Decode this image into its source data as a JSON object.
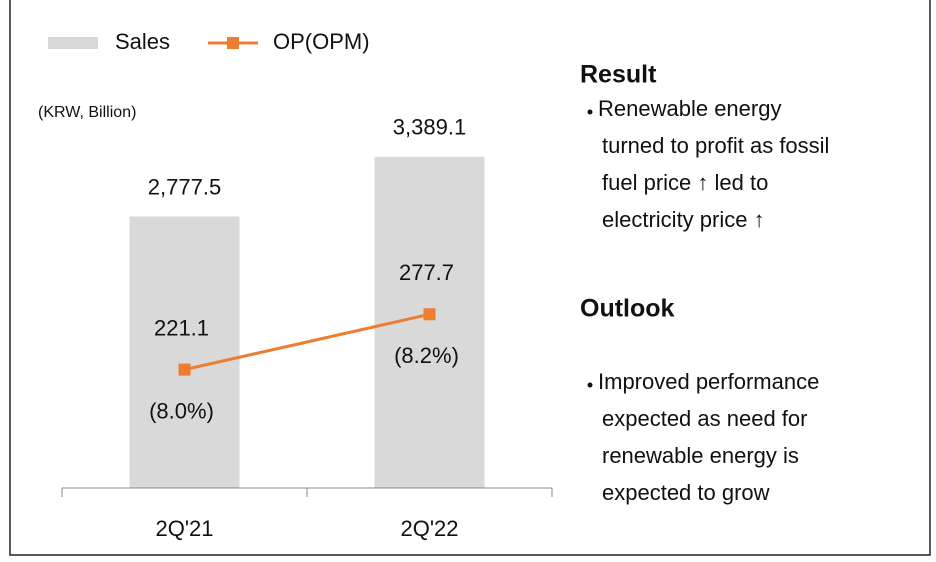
{
  "chart_data": {
    "type": "bar",
    "categories": [
      "2Q'21",
      "2Q'22"
    ],
    "unit_label": "(KRW, Billion)",
    "series": [
      {
        "name": "Sales",
        "type": "bar",
        "color": "#d9d9d9",
        "values": [
          2777.5,
          3389.1
        ],
        "value_labels": [
          "2,777.5",
          "3,389.1"
        ]
      },
      {
        "name": "OP(OPM)",
        "type": "line",
        "axis": "y2",
        "color": "#ed7d31",
        "values": [
          221.1,
          277.7
        ],
        "opm_labels": [
          "(8.0%)",
          "(8.2%)"
        ]
      }
    ],
    "ylim": [
      0,
      4000
    ],
    "y2lim": [
      100,
      500
    ],
    "legend": "top-left"
  },
  "panel": {
    "sections": [
      {
        "heading": "Result",
        "bullets": [
          [
            "Renewable energy",
            "turned to profit as fossil",
            "fuel price ↑  led to",
            "electricity price ↑"
          ]
        ]
      },
      {
        "heading": "Outlook",
        "bullets": [
          [
            "Improved performance",
            "expected as need for",
            "renewable energy is",
            "expected to grow"
          ]
        ]
      }
    ]
  }
}
